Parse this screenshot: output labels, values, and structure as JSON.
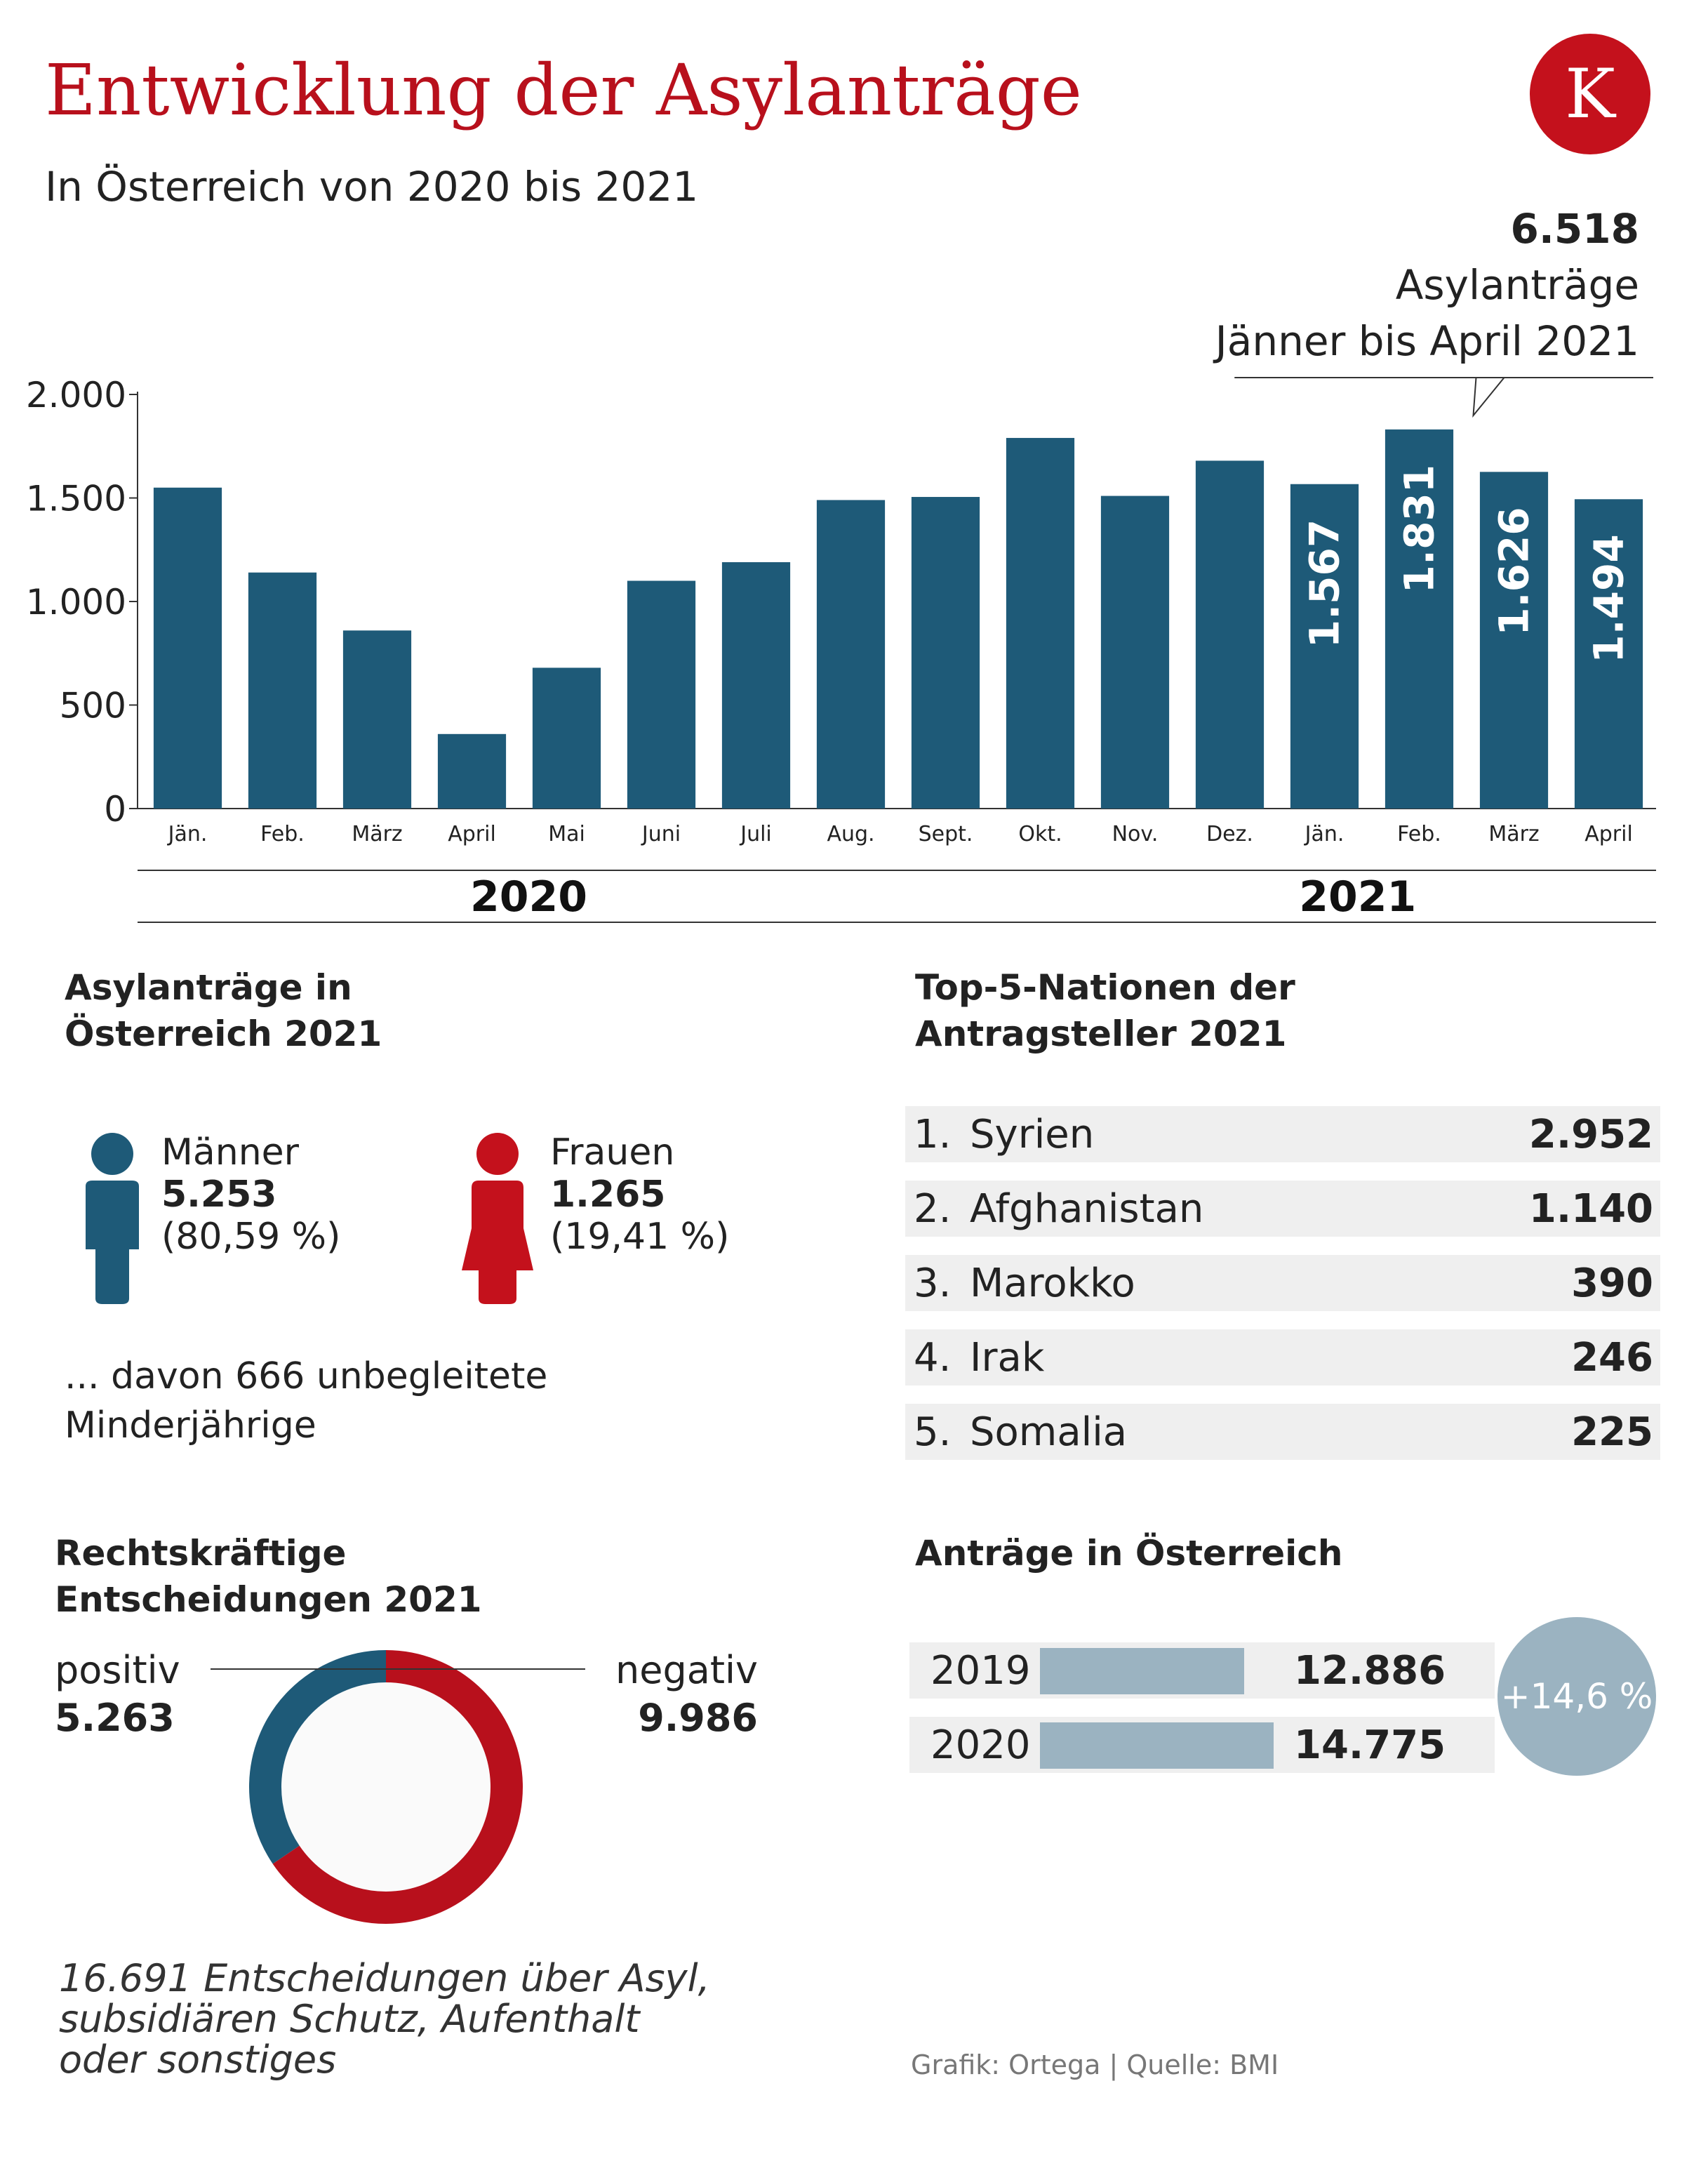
{
  "header": {
    "title": "Entwicklung der Asylanträge",
    "subtitle": "In Österreich von 2020 bis 2021",
    "logo_letter": "K"
  },
  "callout": {
    "value": "6.518",
    "line1": "Asylanträge",
    "line2": "Jänner bis April 2021"
  },
  "chart_data": {
    "type": "bar",
    "categories": [
      "Jän.",
      "Feb.",
      "März",
      "April",
      "Mai",
      "Juni",
      "Juli",
      "Aug.",
      "Sept.",
      "Okt.",
      "Nov.",
      "Dez.",
      "Jän.",
      "Feb.",
      "März",
      "April"
    ],
    "values": [
      1550,
      1140,
      860,
      360,
      680,
      1100,
      1190,
      1490,
      1505,
      1790,
      1510,
      1680,
      1567,
      1831,
      1626,
      1494
    ],
    "data_labels": [
      "",
      "",
      "",
      "",
      "",
      "",
      "",
      "",
      "",
      "",
      "",
      "",
      "1.567",
      "1.831",
      "1.626",
      "1.494"
    ],
    "ylim": [
      0,
      2000
    ],
    "yticks": [
      0,
      500,
      1000,
      1500,
      2000
    ],
    "ytick_labels": [
      "0",
      "500",
      "1.000",
      "1.500",
      "2.000"
    ],
    "year_groups": [
      {
        "label": "2020",
        "from": 0,
        "to": 11
      },
      {
        "label": "2021",
        "from": 12,
        "to": 15
      }
    ],
    "bar_color": "#1e5a78",
    "grid": false
  },
  "gender": {
    "title_line1": "Asylanträge in",
    "title_line2": "Österreich 2021",
    "men": {
      "label": "Männer",
      "value": "5.253",
      "pct": "(80,59 %)",
      "color": "#1e5a78",
      "icon": "male-person-icon"
    },
    "women": {
      "label": "Frauen",
      "value": "1.265",
      "pct": "(19,41 %)",
      "color": "#c4111c",
      "icon": "female-person-icon"
    },
    "note_line1": "... davon 666 unbegleitete",
    "note_line2": "Minderjährige"
  },
  "nations": {
    "title_line1": "Top-5-Nationen der",
    "title_line2": "Antragsteller 2021",
    "rows": [
      {
        "rank": "1.",
        "name": "Syrien",
        "value": "2.952"
      },
      {
        "rank": "2.",
        "name": "Afghanistan",
        "value": "1.140"
      },
      {
        "rank": "3.",
        "name": "Marokko",
        "value": "390"
      },
      {
        "rank": "4.",
        "name": "Irak",
        "value": "246"
      },
      {
        "rank": "5.",
        "name": "Somalia",
        "value": "225"
      }
    ]
  },
  "decisions": {
    "title_line1": "Rechtskräftige",
    "title_line2": "Entscheidungen 2021",
    "positive_label": "positiv",
    "positive_value": "5.263",
    "negative_label": "negativ",
    "negative_value": "9.986",
    "positive_num": 5263,
    "negative_num": 9986,
    "positive_color": "#1e5a78",
    "negative_color": "#b8101c",
    "footnote_line1": "16.691  Entscheidungen über Asyl,",
    "footnote_line2": "subsidiären Schutz, Aufenthalt",
    "footnote_line3": "oder sonstiges"
  },
  "applications": {
    "title": "Anträge in Österreich",
    "rows": [
      {
        "year": "2019",
        "value": "12.886",
        "num": 12886
      },
      {
        "year": "2020",
        "value": "14.775",
        "num": 14775
      }
    ],
    "change": "+14,6 %",
    "bar_color": "#9bb3c1"
  },
  "credit": "Grafik: Ortega | Quelle: BMI"
}
